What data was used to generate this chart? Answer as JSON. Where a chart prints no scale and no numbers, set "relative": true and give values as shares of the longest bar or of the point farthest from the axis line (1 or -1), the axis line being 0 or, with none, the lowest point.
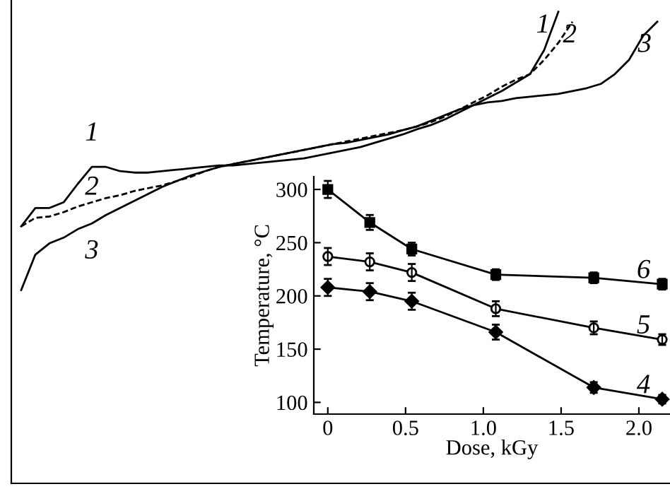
{
  "chart_data": [
    {
      "type": "line",
      "relative": true,
      "categories": [
        null,
        null,
        null,
        null,
        null,
        null,
        null,
        null,
        null,
        null,
        null,
        null,
        null,
        null,
        null,
        null,
        null,
        null,
        null,
        null,
        null,
        null,
        null,
        null,
        null,
        null,
        null,
        null,
        null,
        null,
        null,
        null,
        null,
        null,
        null,
        null,
        null,
        null,
        null,
        null,
        null,
        null,
        null,
        null,
        null,
        null
      ],
      "series": [
        {
          "name": "1",
          "color": "#000000",
          "line_style": "solid",
          "values": [
            0.545,
            0.584,
            0.584,
            0.596,
            0.635,
            0.671,
            0.671,
            0.662,
            0.659,
            0.659,
            0.662,
            0.665,
            0.668,
            0.671,
            0.674,
            0.674,
            0.677,
            0.68,
            0.683,
            0.686,
            0.689,
            0.695,
            0.701,
            0.707,
            0.713,
            0.722,
            0.731,
            0.74,
            0.751,
            0.76,
            0.772,
            0.787,
            0.802,
            0.817,
            0.832,
            0.85,
            0.868,
            0.919,
            1.0,
            null,
            null,
            null,
            null,
            null,
            null,
            null
          ]
        },
        {
          "name": "2",
          "color": "#000000",
          "line_style": "dashed",
          "values": [
            0.545,
            0.563,
            0.566,
            0.575,
            0.587,
            0.596,
            0.605,
            0.611,
            0.62,
            0.626,
            0.632,
            0.641,
            0.65,
            0.662,
            0.671,
            0.677,
            0.683,
            0.689,
            0.695,
            0.701,
            0.707,
            0.713,
            0.719,
            0.725,
            0.731,
            0.737,
            0.743,
            0.749,
            0.757,
            0.766,
            0.778,
            0.793,
            0.808,
            0.823,
            0.841,
            0.856,
            0.868,
            0.898,
            0.934,
            0.979,
            null,
            null,
            null,
            null,
            null,
            null
          ]
        },
        {
          "name": "3",
          "color": "#000000",
          "line_style": "solid",
          "values": [
            0.41,
            0.485,
            0.509,
            0.521,
            0.539,
            0.551,
            0.569,
            0.584,
            0.599,
            0.614,
            0.629,
            0.641,
            0.653,
            0.662,
            0.671,
            0.677,
            0.683,
            0.689,
            0.695,
            0.701,
            0.707,
            0.713,
            0.719,
            0.722,
            0.728,
            0.734,
            0.74,
            0.749,
            0.757,
            0.769,
            0.781,
            0.793,
            0.802,
            0.808,
            0.811,
            0.817,
            0.82,
            0.823,
            0.826,
            0.832,
            0.838,
            0.847,
            0.868,
            0.898,
            0.949,
            0.979
          ]
        }
      ]
    },
    {
      "type": "line",
      "xlabel": "Dose, kGy",
      "ylabel": "Temperature, °C",
      "x": [
        0,
        0.27,
        0.54,
        1.08,
        1.71,
        2.15
      ],
      "xlim": [
        -0.09,
        2.2
      ],
      "xticks": [
        0,
        {
          "value": 0.5,
          "label": "0.5"
        },
        {
          "value": 1,
          "label": "1.0"
        },
        {
          "value": 1.5,
          "label": "1.5"
        },
        {
          "value": 2,
          "label": "2.0"
        }
      ],
      "ylim": [
        89,
        312
      ],
      "yticks": [
        100,
        150,
        200,
        250,
        300
      ],
      "grid": false,
      "series": [
        {
          "name": "4",
          "color": "#000000",
          "marker": "diamond",
          "values": [
            208,
            204,
            195,
            166,
            114,
            103
          ],
          "errors": [
            8,
            8,
            8,
            7,
            5,
            4
          ]
        },
        {
          "name": "5",
          "color": "#000000",
          "marker": "circle",
          "values": [
            237,
            232,
            222,
            188,
            170,
            159
          ],
          "errors": [
            8,
            8,
            8,
            7,
            6,
            5
          ]
        },
        {
          "name": "6",
          "color": "#000000",
          "marker": "square",
          "values": [
            300,
            269,
            244,
            220,
            217,
            211
          ],
          "errors": [
            8,
            7,
            6,
            5,
            5,
            5
          ]
        }
      ]
    }
  ]
}
